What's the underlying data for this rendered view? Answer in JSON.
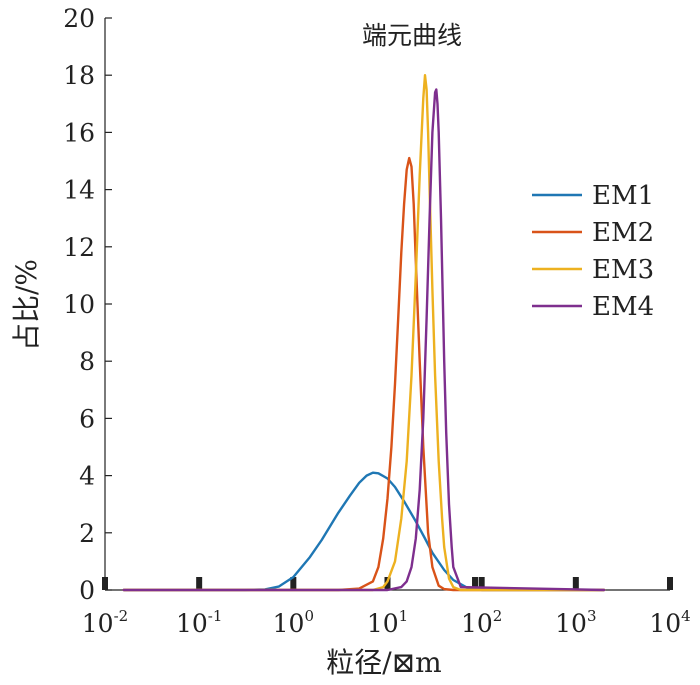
{
  "chart_data": {
    "type": "line",
    "title": "端元曲线",
    "xlabel": "粒径/⊠m",
    "ylabel": "占比/%",
    "x_scale": "log",
    "xlim": [
      0.01,
      10000
    ],
    "ylim": [
      0,
      20
    ],
    "y_ticks": [
      0,
      2,
      4,
      6,
      8,
      10,
      12,
      14,
      16,
      18,
      20
    ],
    "x_ticks": [
      {
        "value": 0.01,
        "base": "10",
        "exp": "-2"
      },
      {
        "value": 0.1,
        "base": "10",
        "exp": "-1"
      },
      {
        "value": 1,
        "base": "10",
        "exp": "0"
      },
      {
        "value": 10,
        "base": "10",
        "exp": "1"
      },
      {
        "value": 100,
        "base": "10",
        "exp": "2"
      },
      {
        "value": 1000,
        "base": "10",
        "exp": "3"
      },
      {
        "value": 10000,
        "base": "10",
        "exp": "4"
      }
    ],
    "legend_position": "right",
    "grid": false,
    "series": [
      {
        "name": "EM1",
        "color": "#1f77b4",
        "x": [
          0.0158,
          0.3,
          0.5,
          0.7,
          1,
          1.5,
          2,
          3,
          4,
          5,
          6,
          7,
          8,
          10,
          12,
          15,
          20,
          25,
          30,
          40,
          50,
          70,
          100,
          1995
        ],
        "y": [
          0,
          0,
          0.02,
          0.12,
          0.45,
          1.15,
          1.75,
          2.7,
          3.3,
          3.75,
          4.0,
          4.1,
          4.08,
          3.9,
          3.6,
          3.1,
          2.4,
          1.8,
          1.3,
          0.7,
          0.35,
          0.08,
          0,
          0
        ]
      },
      {
        "name": "EM2",
        "color": "#d95319",
        "x": [
          0.0158,
          3,
          5,
          7,
          8,
          9,
          10,
          11,
          12,
          13,
          14,
          15,
          16,
          17,
          18,
          19,
          20,
          22,
          24,
          27,
          30,
          35,
          40,
          50,
          1995
        ],
        "y": [
          0,
          0,
          0.05,
          0.3,
          0.8,
          1.8,
          3.2,
          5.0,
          7.2,
          9.5,
          11.8,
          13.5,
          14.7,
          15.1,
          14.8,
          13.5,
          11.5,
          8.0,
          5.0,
          2.0,
          0.8,
          0.15,
          0.03,
          0,
          0
        ]
      },
      {
        "name": "EM3",
        "color": "#edb120",
        "x": [
          0.0158,
          7,
          9,
          10,
          12,
          14,
          16,
          18,
          20,
          22,
          24,
          25,
          26,
          27,
          28,
          30,
          32,
          35,
          38,
          40,
          45,
          50,
          60,
          1995
        ],
        "y": [
          0,
          0,
          0.1,
          0.3,
          1.0,
          2.5,
          4.5,
          7.5,
          11.0,
          14.5,
          17.2,
          18.0,
          17.5,
          16.0,
          14.0,
          10.5,
          7.5,
          4.5,
          2.5,
          1.5,
          0.4,
          0.1,
          0,
          0
        ]
      },
      {
        "name": "EM4",
        "color": "#7e2f8e",
        "x": [
          0.0158,
          10,
          14,
          16,
          18,
          20,
          22,
          24,
          26,
          28,
          30,
          32,
          33,
          34,
          35,
          37,
          40,
          42,
          45,
          48,
          50,
          60,
          1995
        ],
        "y": [
          0,
          0,
          0.1,
          0.3,
          0.8,
          1.8,
          3.5,
          6.0,
          9.5,
          13.0,
          16.0,
          17.4,
          17.5,
          17.0,
          16.0,
          13.0,
          8.0,
          5.5,
          3.0,
          1.5,
          0.8,
          0.1,
          0
        ]
      }
    ]
  }
}
